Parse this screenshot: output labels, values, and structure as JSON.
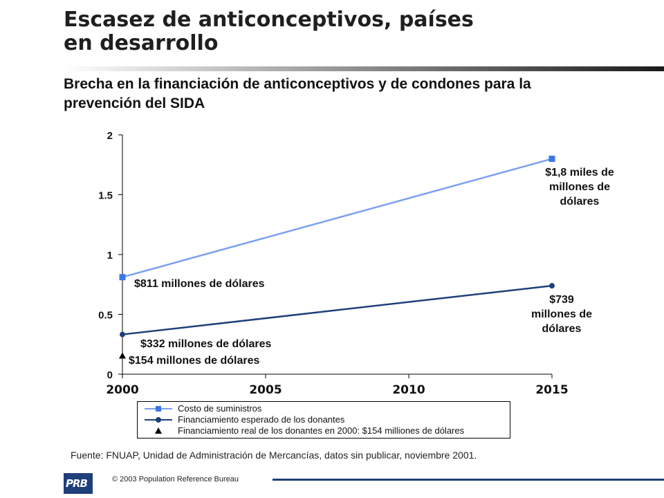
{
  "header": {
    "title_line1": "Escasez de anticonceptivos, países",
    "title_line2": "en desarrollo",
    "subtitle_line1": "Brecha en la financiación de anticonceptivos y de condones para la",
    "subtitle_line2": "prevención del SIDA"
  },
  "colors": {
    "title_rule_start": "#ffffff",
    "title_rule_end": "#1a1a1a",
    "series_supply": "#7b9ff0",
    "series_supply_marker": "#3b78e7",
    "series_donor": "#1f3f7a",
    "brand": "#1f3f7a"
  },
  "chart_data": {
    "type": "line",
    "x": [
      2000,
      2015
    ],
    "xlim": [
      2000,
      2015
    ],
    "ylim": [
      0,
      2
    ],
    "x_ticks": [
      "2000",
      "2005",
      "2010",
      "2015"
    ],
    "y_ticks": [
      "0",
      "0.5",
      "1",
      "1.5",
      "2"
    ],
    "series": [
      {
        "name": "Costo de suministros",
        "values": [
          0.811,
          1.8
        ],
        "marker": "square"
      },
      {
        "name": "Financiamiento esperado de los donantes",
        "values": [
          0.332,
          0.739
        ],
        "marker": "circle"
      }
    ],
    "points": [
      {
        "name": "Financiamiento real de los donantes en 2000: $154 milliones de dólares",
        "x": 2000,
        "y": 0.154,
        "marker": "triangle"
      }
    ],
    "annotations": {
      "supply_end": [
        "$1,8 miles de",
        "millones de",
        "dólares"
      ],
      "supply_start": "$811 millones de dólares",
      "donor_end": [
        "$739",
        "millones de",
        "dólares"
      ],
      "donor_start": "$332 millones de dólares",
      "actual_2000": "$154 millones de dólares"
    },
    "legend_position": "bottom"
  },
  "footer": {
    "source": "Fuente: FNUAP, Unidad de Administración de Mercancías, datos sin publicar, noviembre 2001.",
    "logo_text": "PRB",
    "copyright": "© 2003  Population Reference Bureau"
  }
}
